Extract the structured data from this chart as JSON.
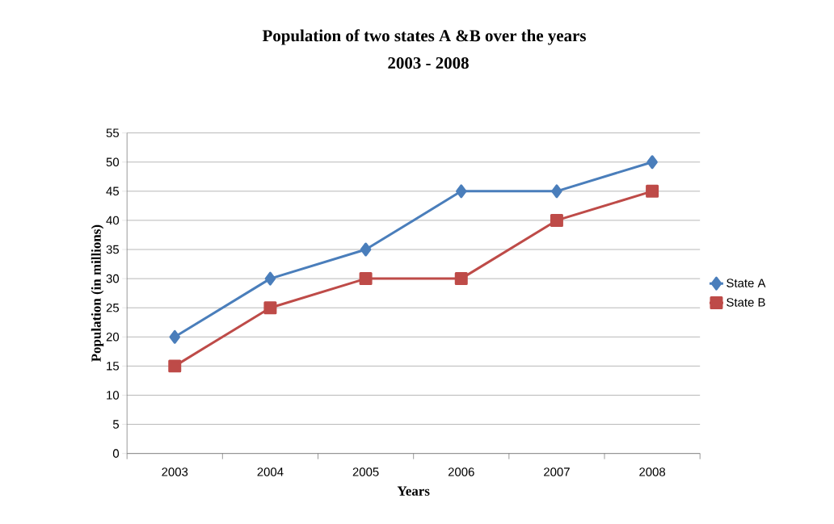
{
  "chart_data": {
    "type": "line",
    "title": "Population of two states A &B over the years",
    "subtitle": "2003 - 2008",
    "xlabel": "Years",
    "ylabel": "Population (in millions)",
    "categories": [
      "2003",
      "2004",
      "2005",
      "2006",
      "2007",
      "2008"
    ],
    "series": [
      {
        "name": "State A",
        "color": "#4a7ebb",
        "marker": "diamond",
        "values": [
          20,
          30,
          35,
          45,
          45,
          50
        ]
      },
      {
        "name": "State B",
        "color": "#be4b48",
        "marker": "square",
        "values": [
          15,
          25,
          30,
          30,
          40,
          45
        ]
      }
    ],
    "ylim": [
      0,
      55
    ],
    "yticks": [
      0,
      5,
      10,
      15,
      20,
      25,
      30,
      35,
      40,
      45,
      50,
      55
    ],
    "grid": "y",
    "legend": "right",
    "line_style": "solid"
  }
}
